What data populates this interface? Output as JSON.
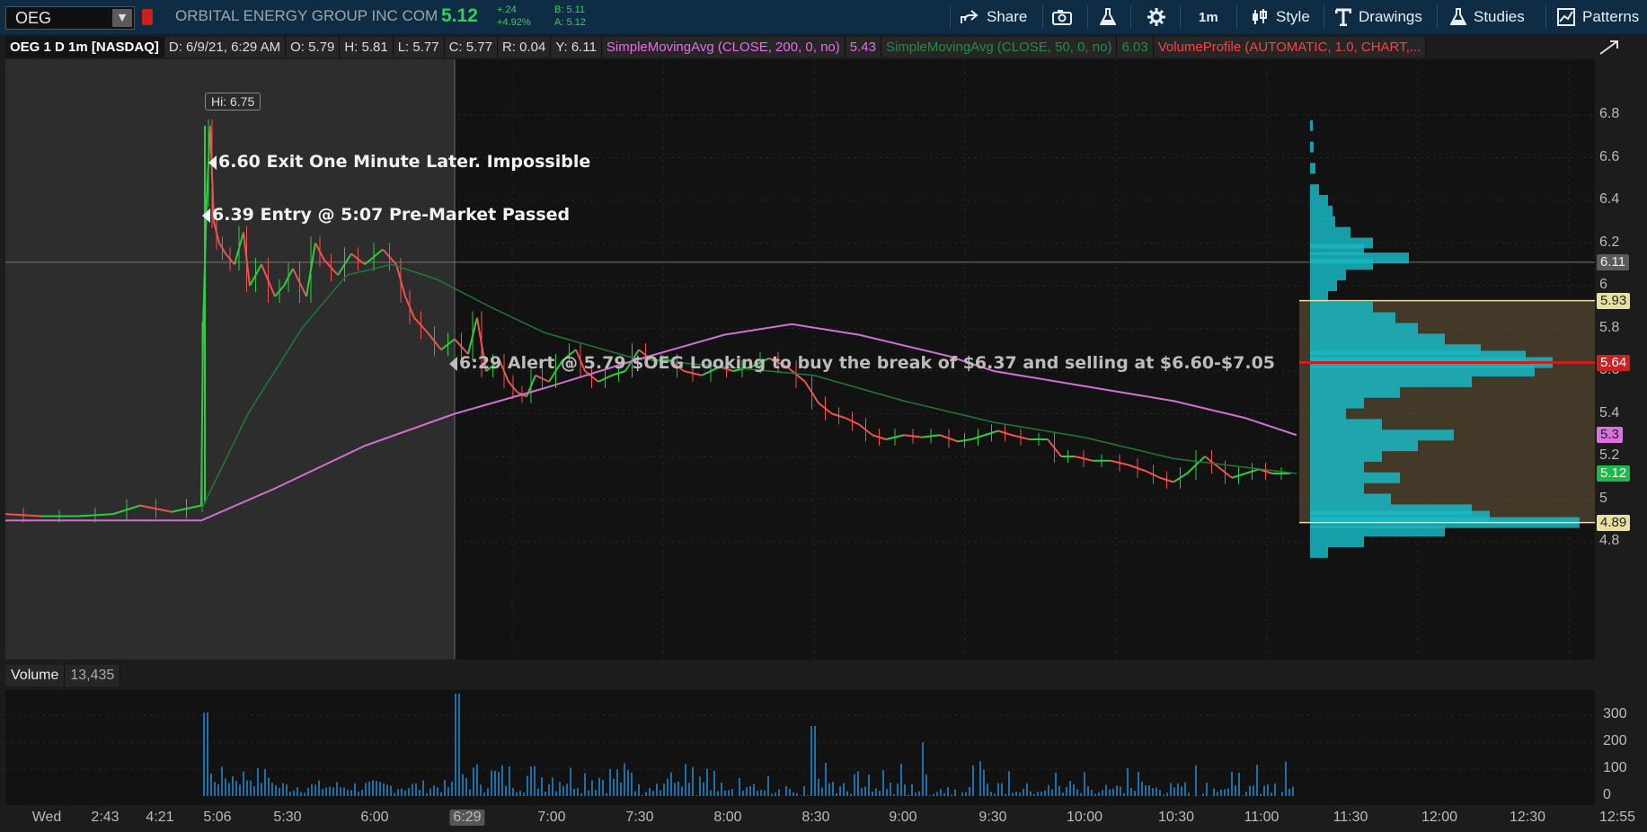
{
  "toolbar": {
    "symbol": "OEG",
    "company": "ORBITAL ENERGY GROUP INC COM",
    "last_price": "5.12",
    "change_abs": "+.24",
    "change_pct": "+4.92%",
    "bid": "B: 5.11",
    "ask": "A: 5.12",
    "buttons": {
      "share": "Share",
      "timeframe": "1m",
      "style": "Style",
      "drawings": "Drawings",
      "studies": "Studies",
      "patterns": "Patterns"
    }
  },
  "study_bar": {
    "title": "OEG 1 D 1m [NASDAQ]",
    "date": "D: 6/9/21, 6:29 AM",
    "open": "O: 5.79",
    "high": "H: 5.81",
    "low": "L: 5.77",
    "close": "C: 5.77",
    "range": "R: 0.04",
    "y": "Y: 6.11",
    "sma200_label": "SimpleMovingAvg (CLOSE, 200, 0, no)",
    "sma200_value": "5.43",
    "sma50_label": "SimpleMovingAvg (CLOSE, 50, 0, no)",
    "sma50_value": "6.03",
    "vp_label": "VolumeProfile (AUTOMATIC, 1.0, CHART,..."
  },
  "annotations": {
    "hi": "Hi: 6.75",
    "exit": "6.60 Exit One Minute Later. Impossible",
    "entry": "6.39 Entry @ 5:07 Pre-Market Passed",
    "alert": "6:29 Alert @ 5.79 $OEG Looking to buy the break of $6.37 and selling at $6.60-$7.05"
  },
  "price_axis": {
    "ticks": [
      "6.8",
      "6.6",
      "6.4",
      "6.2",
      "6",
      "5.8",
      "5.6",
      "5.4",
      "5.2",
      "5",
      "4.8"
    ],
    "flags": [
      {
        "value": "6.11",
        "bg": "#5a5a5a",
        "fg": "#eeeeee"
      },
      {
        "value": "5.93",
        "bg": "#e8e0a0",
        "fg": "#222222"
      },
      {
        "value": "5.64",
        "bg": "#cc2020",
        "fg": "#ffffff"
      },
      {
        "value": "5.3",
        "bg": "#e070e0",
        "fg": "#222222"
      },
      {
        "value": "5.12",
        "bg": "#1fb84a",
        "fg": "#ffffff"
      },
      {
        "value": "4.89",
        "bg": "#e8e0a0",
        "fg": "#222222"
      }
    ]
  },
  "volume": {
    "title": "Volume",
    "value": "13,435",
    "ticks": [
      "300",
      "200",
      "100",
      "0"
    ]
  },
  "time_axis": {
    "ticks": [
      "Wed",
      "2:43",
      "4:21",
      "5:06",
      "5:30",
      "6:00",
      "6:29",
      "7:00",
      "7:30",
      "8:00",
      "8:30",
      "9:00",
      "9:30",
      "10:00",
      "10:30",
      "11:00",
      "11:30",
      "12:00",
      "12:30",
      "12:55"
    ],
    "highlight": "6:29"
  },
  "colors": {
    "up": "#2ecc40",
    "down": "#ef5350",
    "sma200": "#d070d0",
    "sma50": "#1e7a36",
    "profile": "#19b8c4",
    "value_area": "#6b5a3a"
  }
}
